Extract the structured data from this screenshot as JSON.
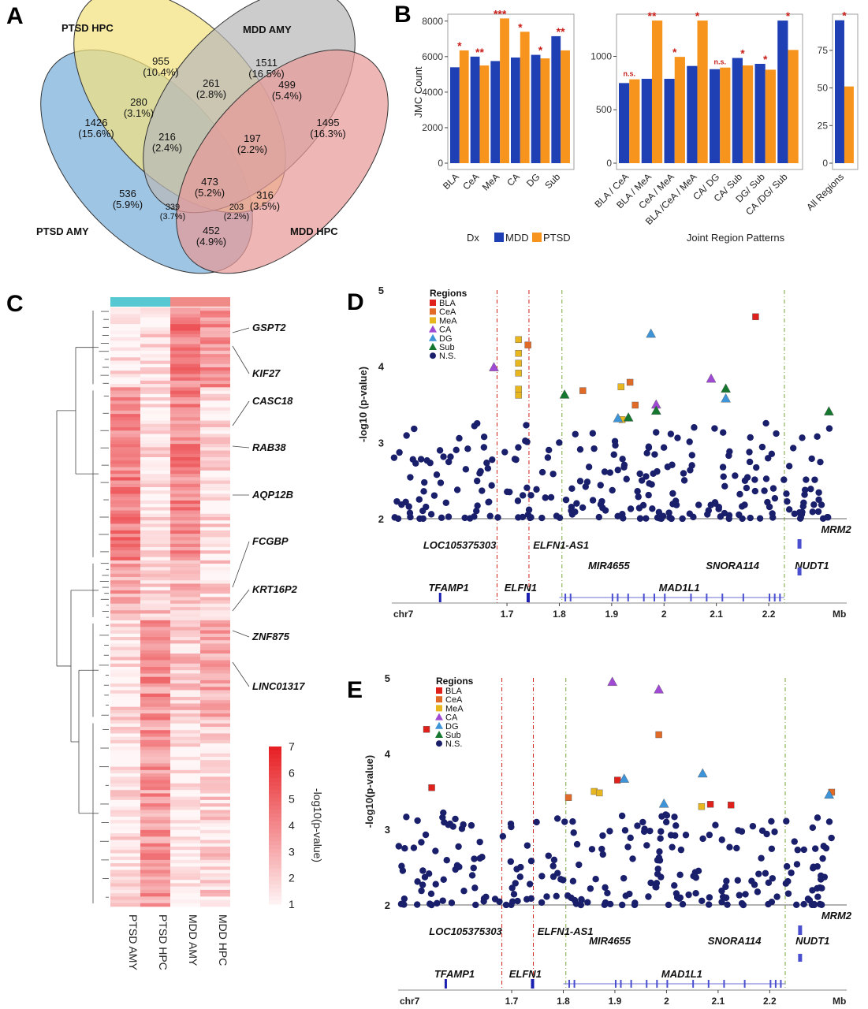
{
  "panels": {
    "A": "A",
    "B": "B",
    "C": "C",
    "D": "D",
    "E": "E"
  },
  "venn": {
    "sets": [
      {
        "name": "PTSD HPC",
        "color": "#f3e27f"
      },
      {
        "name": "MDD AMY",
        "color": "#b9b9b9"
      },
      {
        "name": "PTSD AMY",
        "color": "#7aaed9"
      },
      {
        "name": "MDD HPC",
        "color": "#e89a99"
      }
    ],
    "regions": [
      {
        "count": "955",
        "pct": "(10.4%)"
      },
      {
        "count": "1511",
        "pct": "(16.5%)"
      },
      {
        "count": "1426",
        "pct": "(15.6%)"
      },
      {
        "count": "1495",
        "pct": "(16.3%)"
      },
      {
        "count": "280",
        "pct": "(3.1%)"
      },
      {
        "count": "261",
        "pct": "(2.8%)"
      },
      {
        "count": "499",
        "pct": "(5.4%)"
      },
      {
        "count": "216",
        "pct": "(2.4%)"
      },
      {
        "count": "197",
        "pct": "(2.2%)"
      },
      {
        "count": "473",
        "pct": "(5.2%)"
      },
      {
        "count": "536",
        "pct": "(5.9%)"
      },
      {
        "count": "316",
        "pct": "(3.5%)"
      },
      {
        "count": "339",
        "pct": "(3.7%)"
      },
      {
        "count": "203",
        "pct": "(2.2%)"
      },
      {
        "count": "452",
        "pct": "(4.9%)"
      }
    ]
  },
  "chart_data": [
    {
      "type": "bar",
      "ylabel": "JMC Count",
      "ylim": [
        0,
        8300
      ],
      "yticks": [
        0,
        2000,
        4000,
        6000,
        8000
      ],
      "categories": [
        "BLA",
        "CeA",
        "MeA",
        "CA",
        "DG",
        "Sub"
      ],
      "series": [
        {
          "name": "MDD",
          "color": "#1f3fb5",
          "values": [
            5400,
            6000,
            5750,
            5950,
            6100,
            7150
          ]
        },
        {
          "name": "PTSD",
          "color": "#f7941d",
          "values": [
            6350,
            5500,
            8150,
            7400,
            5900,
            6350
          ]
        }
      ],
      "significance": [
        "*",
        "**",
        "***",
        "*",
        "*",
        "**"
      ]
    },
    {
      "type": "bar",
      "xlabel": "Joint Region Patterns",
      "ylim": [
        0,
        1380
      ],
      "yticks": [
        0,
        500,
        1000
      ],
      "categories": [
        "BLA / CeA",
        "BLA / MeA",
        "CeA / MeA",
        "BLA /CeA / MeA",
        "CA/ DG",
        "CA/ Sub",
        "DG/ Sub",
        "CA /DG/ Sub"
      ],
      "series": [
        {
          "name": "MDD",
          "color": "#1f3fb5",
          "values": [
            750,
            790,
            790,
            910,
            880,
            985,
            930,
            1335
          ]
        },
        {
          "name": "PTSD",
          "color": "#f7941d",
          "values": [
            785,
            1335,
            995,
            1335,
            895,
            915,
            875,
            1060
          ]
        }
      ],
      "significance": [
        "n.s.",
        "**",
        "*",
        "*",
        "n.s.",
        "*",
        "*",
        "*"
      ]
    },
    {
      "type": "bar",
      "ylim": [
        0,
        98
      ],
      "yticks": [
        0,
        25,
        50,
        75
      ],
      "categories": [
        "All Regions"
      ],
      "series": [
        {
          "name": "MDD",
          "color": "#1f3fb5",
          "values": [
            95
          ]
        },
        {
          "name": "PTSD",
          "color": "#f7941d",
          "values": [
            51
          ]
        }
      ],
      "significance": [
        "*"
      ]
    },
    {
      "type": "heatmap",
      "columns": [
        "PTSD AMY",
        "PTSD HPC",
        "MDD AMY",
        "MDD HPC"
      ],
      "column_colors": [
        "#55c8d1",
        "#55c8d1",
        "#f08a86",
        "#f08a86"
      ],
      "gene_labels": [
        "GSPT2",
        "KIF27",
        "CASC18",
        "RAB38",
        "AQP12B",
        "FCGBP",
        "KRT16P2",
        "ZNF875",
        "LINC01317"
      ],
      "legend_title": "-log10(p-value)",
      "legend_ticks": [
        1,
        2,
        3,
        4,
        5,
        6,
        7
      ],
      "row_clusters": [
        {
          "rows": 24,
          "levels": [
            1.4,
            1.6,
            4.4,
            3.6
          ]
        },
        {
          "rows": 52,
          "levels": [
            4.3,
            1.5,
            4.2,
            1.7
          ]
        },
        {
          "rows": 18,
          "levels": [
            3.4,
            2.3,
            2.6,
            1.8
          ]
        },
        {
          "rows": 30,
          "levels": [
            1.6,
            3.8,
            2.4,
            3.3
          ]
        },
        {
          "rows": 56,
          "levels": [
            1.4,
            3.6,
            1.3,
            2.0
          ]
        }
      ]
    },
    {
      "type": "scatter",
      "ylabel": "-log10 (p-value)",
      "xlabel": "chr7",
      "x_unit": "Mb",
      "xlim": [
        1.48,
        2.34
      ],
      "ylim": [
        2,
        5
      ],
      "xticks": [
        1.7,
        1.8,
        1.9,
        2.0,
        2.1,
        2.2
      ],
      "xtick_labels": [
        "1.7",
        "1.8",
        "1.9",
        "2",
        "2.1",
        "2.2"
      ],
      "yticks": [
        2,
        3,
        4,
        5
      ],
      "legend_title": "Regions",
      "legend": [
        "BLA",
        "CeA",
        "MeA",
        "CA",
        "DG",
        "Sub",
        "N.S."
      ],
      "vlines_red": [
        1.681,
        1.742
      ],
      "vlines_green": [
        1.805,
        2.23
      ],
      "highlighted": [
        {
          "x": 2.175,
          "y": 4.65,
          "region": "BLA"
        },
        {
          "x": 1.74,
          "y": 4.28,
          "region": "CeA"
        },
        {
          "x": 1.845,
          "y": 3.68,
          "region": "CeA"
        },
        {
          "x": 1.935,
          "y": 3.79,
          "region": "CeA"
        },
        {
          "x": 1.945,
          "y": 3.49,
          "region": "CeA"
        },
        {
          "x": 1.722,
          "y": 4.35,
          "region": "MeA"
        },
        {
          "x": 1.722,
          "y": 4.17,
          "region": "MeA"
        },
        {
          "x": 1.722,
          "y": 4.04,
          "region": "MeA"
        },
        {
          "x": 1.722,
          "y": 3.91,
          "region": "MeA"
        },
        {
          "x": 1.722,
          "y": 3.7,
          "region": "MeA"
        },
        {
          "x": 1.722,
          "y": 3.62,
          "region": "MeA"
        },
        {
          "x": 1.918,
          "y": 3.73,
          "region": "MeA"
        },
        {
          "x": 1.92,
          "y": 3.3,
          "region": "MeA"
        },
        {
          "x": 1.675,
          "y": 3.99,
          "region": "CA"
        },
        {
          "x": 2.09,
          "y": 3.84,
          "region": "CA"
        },
        {
          "x": 1.985,
          "y": 3.5,
          "region": "CA"
        },
        {
          "x": 1.975,
          "y": 4.43,
          "region": "DG"
        },
        {
          "x": 1.912,
          "y": 3.32,
          "region": "DG"
        },
        {
          "x": 2.118,
          "y": 3.58,
          "region": "DG"
        },
        {
          "x": 1.81,
          "y": 3.63,
          "region": "Sub"
        },
        {
          "x": 2.118,
          "y": 3.71,
          "region": "Sub"
        },
        {
          "x": 1.985,
          "y": 3.42,
          "region": "Sub"
        },
        {
          "x": 1.932,
          "y": 3.33,
          "region": "Sub"
        },
        {
          "x": 2.315,
          "y": 3.41,
          "region": "Sub"
        }
      ],
      "ns_points": {
        "count": 260,
        "ymax": 3.27,
        "seed": 11
      },
      "genes": [
        {
          "name": "LOC105375303",
          "x": 1.54,
          "row": 0
        },
        {
          "name": "ELFN1-AS1",
          "x": 1.75,
          "row": 0
        },
        {
          "name": "MIR4655",
          "x": 1.855,
          "row": 1
        },
        {
          "name": "SNORA114",
          "x": 2.08,
          "row": 1
        },
        {
          "name": "MRM2",
          "x": 2.3,
          "row": -1
        },
        {
          "name": "NUDT1",
          "x": 2.25,
          "row": 1
        },
        {
          "name": "TFAMP1",
          "x": 1.55,
          "row": 2
        },
        {
          "name": "ELFN1",
          "x": 1.695,
          "row": 2
        },
        {
          "name": "MAD1L1",
          "x": 1.99,
          "row": 2
        }
      ]
    },
    {
      "type": "scatter",
      "ylabel": "-log10(p-value)",
      "xlabel": "chr7",
      "x_unit": "Mb",
      "xlim": [
        1.48,
        2.34
      ],
      "ylim": [
        2,
        5
      ],
      "xticks": [
        1.7,
        1.8,
        1.9,
        2.0,
        2.1,
        2.2
      ],
      "xtick_labels": [
        "1.7",
        "1.8",
        "1.9",
        "2",
        "2.1",
        "2.2"
      ],
      "yticks": [
        2,
        3,
        4,
        5
      ],
      "legend_title": "Regions",
      "legend": [
        "BLA",
        "CeA",
        "MeA",
        "CA",
        "DG",
        "Sub",
        "N.S."
      ],
      "vlines_red": [
        1.681,
        1.742
      ],
      "vlines_green": [
        1.805,
        2.23
      ],
      "highlighted": [
        {
          "x": 1.535,
          "y": 4.32,
          "region": "BLA"
        },
        {
          "x": 1.545,
          "y": 3.55,
          "region": "BLA"
        },
        {
          "x": 1.905,
          "y": 3.65,
          "region": "BLA"
        },
        {
          "x": 2.085,
          "y": 3.33,
          "region": "BLA"
        },
        {
          "x": 2.125,
          "y": 3.32,
          "region": "BLA"
        },
        {
          "x": 1.81,
          "y": 3.42,
          "region": "CeA"
        },
        {
          "x": 1.985,
          "y": 4.25,
          "region": "CeA"
        },
        {
          "x": 2.32,
          "y": 3.49,
          "region": "CeA"
        },
        {
          "x": 1.86,
          "y": 3.5,
          "region": "MeA"
        },
        {
          "x": 1.87,
          "y": 3.48,
          "region": "MeA"
        },
        {
          "x": 2.068,
          "y": 3.3,
          "region": "MeA"
        },
        {
          "x": 1.895,
          "y": 4.95,
          "region": "CA"
        },
        {
          "x": 1.985,
          "y": 4.85,
          "region": "CA"
        },
        {
          "x": 1.918,
          "y": 3.67,
          "region": "DG"
        },
        {
          "x": 1.995,
          "y": 3.34,
          "region": "DG"
        },
        {
          "x": 2.07,
          "y": 3.74,
          "region": "DG"
        },
        {
          "x": 2.315,
          "y": 3.46,
          "region": "DG"
        }
      ],
      "ns_points": {
        "count": 250,
        "ymax": 3.25,
        "seed": 29
      },
      "genes": [
        {
          "name": "LOC105375303",
          "x": 1.54,
          "row": 0
        },
        {
          "name": "ELFN1-AS1",
          "x": 1.75,
          "row": 0
        },
        {
          "name": "MIR4655",
          "x": 1.85,
          "row": 0.35
        },
        {
          "name": "SNORA114",
          "x": 2.08,
          "row": 0.35
        },
        {
          "name": "MRM2",
          "x": 2.3,
          "row": -1
        },
        {
          "name": "NUDT1",
          "x": 2.25,
          "row": 0.35
        },
        {
          "name": "TFAMP1",
          "x": 1.55,
          "row": 2
        },
        {
          "name": "ELFN1",
          "x": 1.695,
          "row": 2
        },
        {
          "name": "MAD1L1",
          "x": 1.99,
          "row": 2
        }
      ]
    }
  ],
  "bar_legend": {
    "title": "Dx",
    "items": [
      {
        "name": "MDD",
        "color": "#1f3fb5"
      },
      {
        "name": "PTSD",
        "color": "#f7941d"
      }
    ]
  },
  "region_colors": {
    "BLA": "#e0201b",
    "CeA": "#e06a26",
    "MeA": "#e8b61f",
    "CA": "#a049d4",
    "DG": "#3d94d9",
    "Sub": "#15772f",
    "N.S.": "#1a1f6b"
  }
}
